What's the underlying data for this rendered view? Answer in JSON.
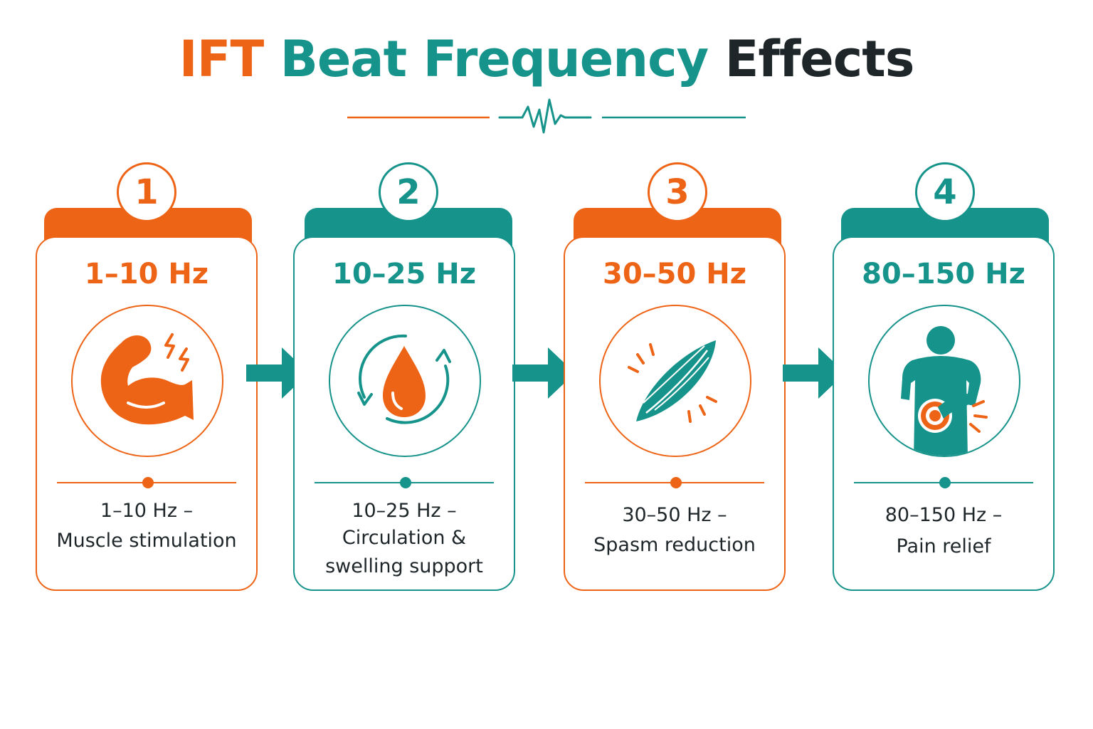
{
  "title": {
    "part1": "IFT",
    "part2": "Beat Frequency",
    "part3": "Effects"
  },
  "colors": {
    "orange": "#ee6416",
    "teal": "#16938a",
    "dark": "#1e2629"
  },
  "cards": [
    {
      "number": "1",
      "range": "1–10 Hz",
      "icon": "flexed-arm-icon",
      "desc_line1": "1–10 Hz –",
      "desc_line2": "Muscle stimulation",
      "desc_line3": ""
    },
    {
      "number": "2",
      "range": "10–25 Hz",
      "icon": "blood-drop-circulation-icon",
      "desc_line1": "10–25 Hz –",
      "desc_line2": "Circulation &",
      "desc_line3": "swelling support"
    },
    {
      "number": "3",
      "range": "30–50 Hz",
      "icon": "muscle-spasm-icon",
      "desc_line1": "30–50 Hz –",
      "desc_line2": "Spasm reduction",
      "desc_line3": ""
    },
    {
      "number": "4",
      "range": "80–150 Hz",
      "icon": "back-pain-icon",
      "desc_line1": "80–150 Hz –",
      "desc_line2": "Pain relief",
      "desc_line3": ""
    }
  ]
}
